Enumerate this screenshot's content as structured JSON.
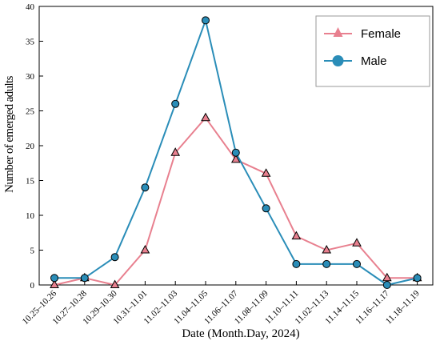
{
  "chart_data": {
    "type": "line",
    "categories": [
      "10.25–10.26",
      "10.27–10.28",
      "10.29–10.30",
      "10.31–11.01",
      "11.02–11.03",
      "11.04–11.05",
      "11.06–11.07",
      "11.08–11.09",
      "11.10–11.11",
      "11.02–11.13",
      "11.14–11.15",
      "11.16–11.17",
      "11.18–11.19"
    ],
    "series": [
      {
        "name": "Female",
        "marker": "triangle",
        "color": "#e8808f",
        "values": [
          0,
          1,
          0,
          5,
          19,
          24,
          18,
          16,
          7,
          5,
          6,
          1,
          1
        ]
      },
      {
        "name": "Male",
        "marker": "circle",
        "color": "#2a8db8",
        "values": [
          1,
          1,
          4,
          14,
          26,
          38,
          19,
          11,
          3,
          3,
          3,
          0,
          1
        ]
      }
    ],
    "xlabel": "Date (Month.Day, 2024)",
    "ylabel": "Number of emerged adults",
    "ylim": [
      0,
      40
    ],
    "yticks": [
      0,
      5,
      10,
      15,
      20,
      25,
      30,
      35,
      40
    ],
    "grid": false,
    "legend_position": "top-right"
  }
}
